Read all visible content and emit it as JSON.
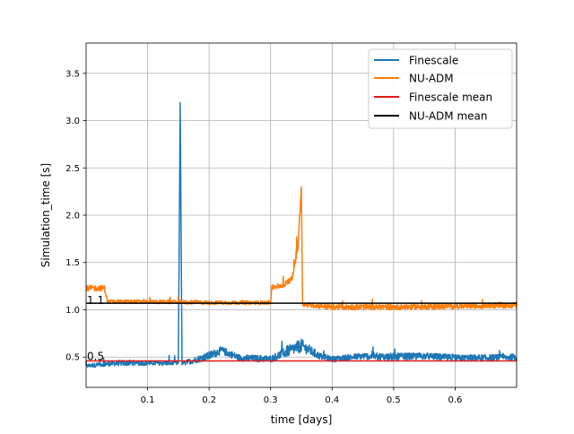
{
  "chart_data": {
    "type": "line",
    "title": "",
    "xlabel": "time [days]",
    "ylabel": "Simulation_time [s]",
    "xlim": [
      0.0,
      0.7
    ],
    "ylim": [
      0.18,
      3.82
    ],
    "xticks": [
      0.1,
      0.2,
      0.3,
      0.4,
      0.5,
      0.6
    ],
    "yticks": [
      0.5,
      1.0,
      1.5,
      2.0,
      2.5,
      3.0,
      3.5
    ],
    "xtick_labels": [
      "0.1",
      "0.2",
      "0.3",
      "0.4",
      "0.5",
      "0.6"
    ],
    "ytick_labels": [
      "0.5",
      "1.0",
      "1.5",
      "2.0",
      "2.5",
      "3.0",
      "3.5"
    ],
    "grid": true,
    "legend_position": "top-right",
    "annotations": [
      {
        "text": "1.1",
        "x": 0.0,
        "y": 1.05
      },
      {
        "text": "0.5",
        "x": 0.0,
        "y": 0.46
      }
    ],
    "series": [
      {
        "name": "Finescale",
        "color": "#1f77b4",
        "style": "noisy",
        "x": [
          0.0,
          0.03,
          0.06,
          0.1,
          0.13,
          0.15,
          0.153,
          0.156,
          0.16,
          0.2,
          0.22,
          0.25,
          0.3,
          0.33,
          0.35,
          0.38,
          0.4,
          0.45,
          0.5,
          0.55,
          0.6,
          0.65,
          0.7
        ],
        "y": [
          0.4,
          0.42,
          0.43,
          0.43,
          0.43,
          0.43,
          3.19,
          0.43,
          0.43,
          0.5,
          0.56,
          0.48,
          0.47,
          0.55,
          0.6,
          0.5,
          0.47,
          0.5,
          0.49,
          0.5,
          0.48,
          0.48,
          0.49
        ],
        "spread": [
          0.04,
          0.05,
          0.06,
          0.05,
          0.05,
          0.05,
          0.0,
          0.05,
          0.05,
          0.09,
          0.08,
          0.07,
          0.07,
          0.12,
          0.14,
          0.07,
          0.06,
          0.07,
          0.08,
          0.07,
          0.07,
          0.07,
          0.07
        ]
      },
      {
        "name": "NU-ADM",
        "color": "#ff7f0e",
        "style": "noisy",
        "x": [
          0.0,
          0.03,
          0.035,
          0.1,
          0.2,
          0.3,
          0.302,
          0.32,
          0.335,
          0.345,
          0.35,
          0.352,
          0.4,
          0.5,
          0.6,
          0.7
        ],
        "y": [
          1.22,
          1.22,
          1.08,
          1.08,
          1.07,
          1.07,
          1.23,
          1.25,
          1.32,
          1.7,
          2.3,
          1.05,
          1.02,
          1.02,
          1.03,
          1.04
        ],
        "spread": [
          0.06,
          0.06,
          0.04,
          0.04,
          0.04,
          0.04,
          0.05,
          0.05,
          0.06,
          0.15,
          0.0,
          0.05,
          0.06,
          0.06,
          0.06,
          0.06
        ]
      },
      {
        "name": "Finescale mean",
        "color": "#e31a1c",
        "style": "flat",
        "x": [
          0.0,
          0.7
        ],
        "y": [
          0.46,
          0.46
        ]
      },
      {
        "name": "NU-ADM mean",
        "color": "#000000",
        "style": "flat",
        "x": [
          0.0,
          0.7
        ],
        "y": [
          1.07,
          1.07
        ]
      }
    ]
  }
}
